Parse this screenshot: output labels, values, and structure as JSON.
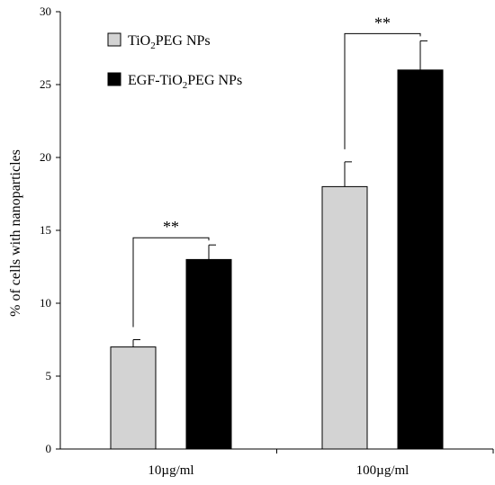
{
  "chart_data": {
    "type": "bar",
    "title": "",
    "xlabel": "",
    "ylabel": "% of cells with nanoparticles",
    "ylim": [
      0,
      30
    ],
    "yticks": [
      "0",
      "5",
      "10",
      "15",
      "20",
      "25",
      "30"
    ],
    "grid": false,
    "legend_position": "top-left",
    "categories": [
      "10µg/ml",
      "100µg/ml"
    ],
    "series": [
      {
        "name": "TiO2PEG NPs",
        "name_main": "TiO",
        "name_sub": "2",
        "name_rest": "PEG NPs",
        "color": "#d3d3d3",
        "values": [
          7.0,
          18.0
        ],
        "errors": [
          0.5,
          1.7
        ]
      },
      {
        "name": "EGF-TiO2PEG NPs",
        "name_main": "EGF-TiO",
        "name_sub": "2",
        "name_rest": "PEG NPs",
        "color": "#000000",
        "values": [
          13.0,
          26.0
        ],
        "errors": [
          1.0,
          2.0
        ]
      }
    ],
    "annotations": [
      {
        "text": "**",
        "category_index": 0
      },
      {
        "text": "**",
        "category_index": 1
      }
    ]
  }
}
